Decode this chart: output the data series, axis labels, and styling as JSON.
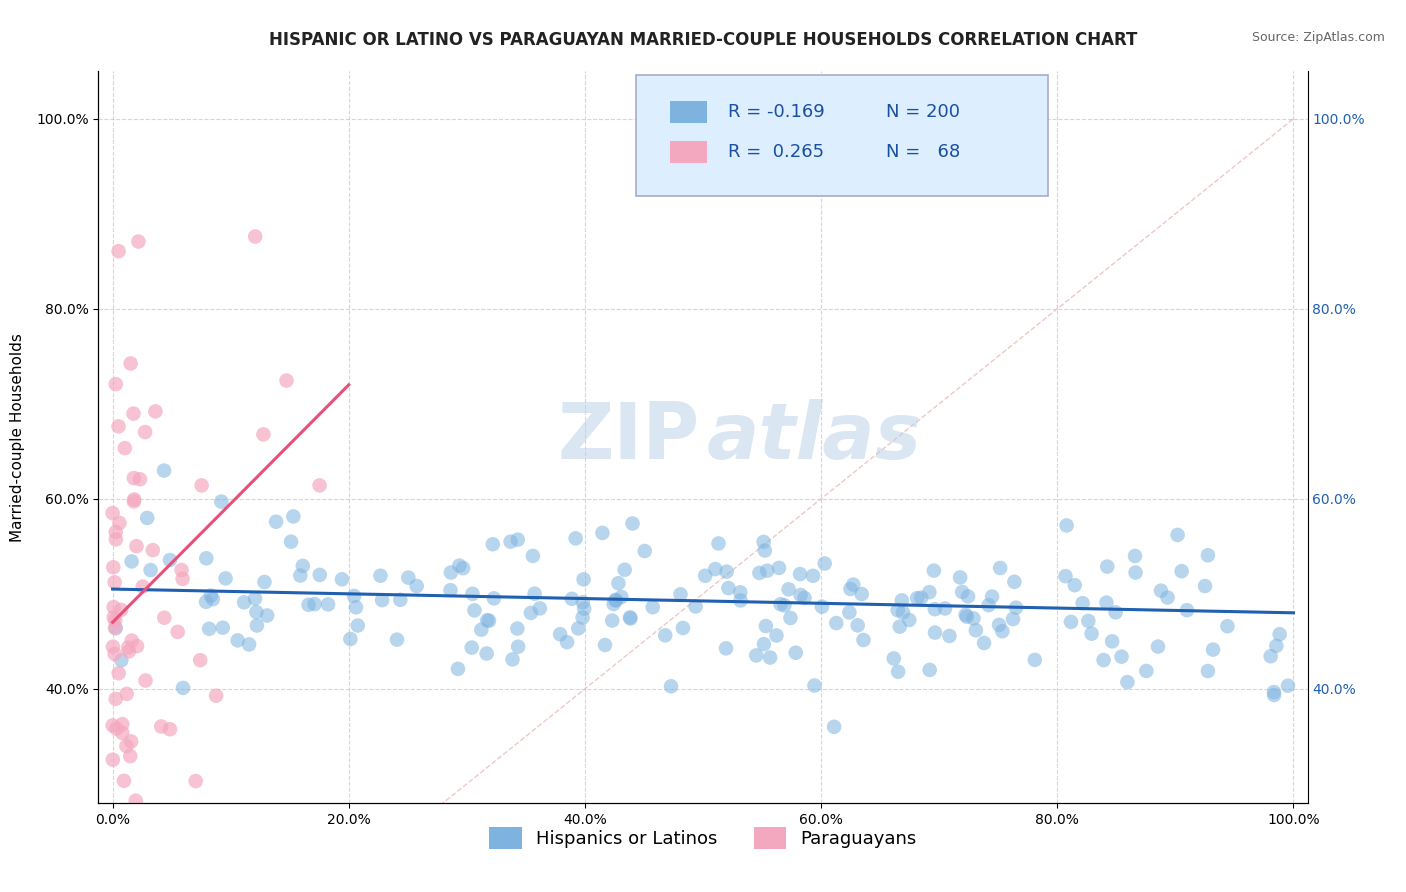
{
  "title": "HISPANIC OR LATINO VS PARAGUAYAN MARRIED-COUPLE HOUSEHOLDS CORRELATION CHART",
  "source": "Source: ZipAtlas.com",
  "ylabel": "Married-couple Households",
  "watermark_zip": "ZIP",
  "watermark_atlas": "atlas",
  "xlim": [
    0.0,
    1.0
  ],
  "ylim": [
    0.28,
    1.05
  ],
  "xticks": [
    0.0,
    0.2,
    0.4,
    0.6,
    0.8,
    1.0
  ],
  "yticks": [
    0.4,
    0.6,
    0.8,
    1.0
  ],
  "xticklabels": [
    "0.0%",
    "20.0%",
    "40.0%",
    "60.0%",
    "80.0%",
    "100.0%"
  ],
  "yticklabels": [
    "40.0%",
    "60.0%",
    "80.0%",
    "100.0%"
  ],
  "blue_color": "#7eb3e0",
  "pink_color": "#f4a8c0",
  "blue_line_color": "#2060b0",
  "pink_line_color": "#e8507a",
  "diag_line_color": "#e8b0b0",
  "legend_box_color": "#ddeeff",
  "legend_R_blue": "-0.169",
  "legend_N_blue": "200",
  "legend_R_pink": "0.265",
  "legend_N_pink": "68",
  "legend_label_blue": "Hispanics or Latinos",
  "legend_label_pink": "Paraguayans",
  "title_fontsize": 12,
  "axis_label_fontsize": 11,
  "tick_fontsize": 10,
  "legend_fontsize": 13,
  "blue_R": -0.169,
  "pink_R": 0.265,
  "blue_N": 200,
  "pink_N": 68,
  "background_color": "#ffffff",
  "grid_color": "#bbbbbb",
  "right_tick_color": "#2060b0"
}
